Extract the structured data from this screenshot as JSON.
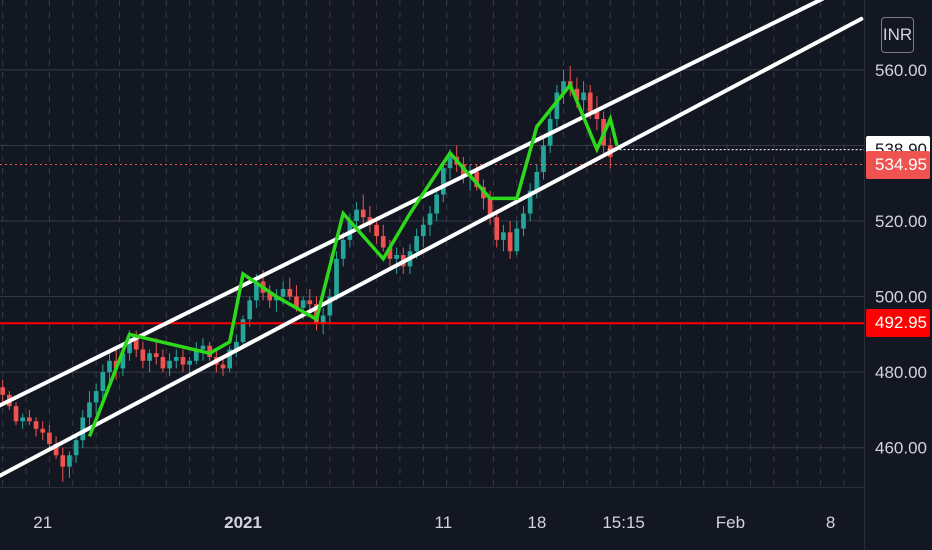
{
  "currency_button": "INR",
  "colors": {
    "background": "#131722",
    "grid": "#363a45",
    "axis_text": "#d1d4dc",
    "channel": "#ffffff",
    "zigzag": "#2ed91c",
    "candle_up": "#26a69a",
    "candle_down": "#ef5350",
    "support": "#ff0000"
  },
  "chart_data": {
    "type": "candlestick",
    "symbol_currency": "INR",
    "y_ticks": [
      460,
      480,
      500,
      520,
      540,
      560
    ],
    "y_tick_labels": [
      "460.00",
      "480.00",
      "500.00",
      "520.00",
      "",
      "560.00"
    ],
    "ylim": [
      449.6,
      578.5
    ],
    "x_tick_labels": [
      "21",
      "2021",
      "11",
      "18",
      "15:15",
      "Feb",
      "8"
    ],
    "x_tick_values": [
      21,
      36,
      51,
      58,
      64.5,
      72.5,
      80
    ],
    "xlim": [
      17.8,
      82.5
    ],
    "candles": [
      [
        18,
        476,
        478,
        472,
        474
      ],
      [
        18.5,
        474,
        475,
        470,
        471
      ],
      [
        19,
        471,
        472,
        466,
        467
      ],
      [
        19.5,
        467,
        469,
        465,
        468
      ],
      [
        20,
        468,
        470,
        466,
        467
      ],
      [
        20.5,
        467,
        468,
        463,
        465
      ],
      [
        21,
        465,
        467,
        462,
        464
      ],
      [
        21.5,
        464,
        466,
        459,
        461
      ],
      [
        22,
        461,
        463,
        457,
        458
      ],
      [
        22.5,
        458,
        460,
        451,
        455
      ],
      [
        23,
        455,
        459,
        452,
        458
      ],
      [
        23.5,
        458,
        463,
        456,
        462
      ],
      [
        24,
        462,
        470,
        460,
        468
      ],
      [
        24.5,
        468,
        475,
        466,
        472
      ],
      [
        25,
        472,
        477,
        469,
        475
      ],
      [
        25.5,
        475,
        482,
        473,
        480
      ],
      [
        26,
        480,
        485,
        477,
        483
      ],
      [
        26.5,
        483,
        486,
        478,
        481
      ],
      [
        27,
        481,
        486,
        479,
        485
      ],
      [
        27.5,
        485,
        491,
        483,
        489
      ],
      [
        28,
        489,
        491,
        484,
        486
      ],
      [
        28.5,
        486,
        488,
        481,
        483
      ],
      [
        29,
        483,
        486,
        480,
        485
      ],
      [
        29.5,
        485,
        489,
        482,
        484
      ],
      [
        30,
        484,
        486,
        480,
        481
      ],
      [
        30.5,
        481,
        485,
        479,
        483
      ],
      [
        31,
        483,
        486,
        481,
        484
      ],
      [
        31.5,
        484,
        486,
        480,
        482
      ],
      [
        32,
        482,
        484,
        479,
        483
      ],
      [
        32.5,
        483,
        488,
        482,
        486
      ],
      [
        33,
        486,
        489,
        483,
        487
      ],
      [
        33.5,
        487,
        488,
        483,
        484
      ],
      [
        34,
        484,
        486,
        480,
        482
      ],
      [
        34.5,
        482,
        484,
        479,
        481
      ],
      [
        35,
        481,
        487,
        480,
        486
      ],
      [
        35.5,
        486,
        490,
        484,
        488
      ],
      [
        36,
        488,
        495,
        487,
        494
      ],
      [
        36.5,
        494,
        500,
        492,
        499
      ],
      [
        37,
        499,
        506,
        497,
        504
      ],
      [
        37.5,
        504,
        507,
        499,
        501
      ],
      [
        38,
        501,
        503,
        497,
        499
      ],
      [
        38.5,
        499,
        502,
        496,
        500
      ],
      [
        39,
        500,
        504,
        498,
        502
      ],
      [
        39.5,
        502,
        505,
        499,
        500
      ],
      [
        40,
        500,
        503,
        496,
        497
      ],
      [
        40.5,
        497,
        500,
        494,
        499
      ],
      [
        41,
        499,
        502,
        496,
        498
      ],
      [
        41.5,
        498,
        500,
        491,
        493
      ],
      [
        42,
        493,
        497,
        490,
        495
      ],
      [
        42.5,
        495,
        502,
        493,
        500
      ],
      [
        43,
        500,
        512,
        499,
        510
      ],
      [
        43.5,
        510,
        517,
        508,
        515
      ],
      [
        44,
        515,
        522,
        513,
        520
      ],
      [
        44.5,
        520,
        525,
        518,
        523
      ],
      [
        45,
        523,
        527,
        519,
        521
      ],
      [
        45.5,
        521,
        524,
        517,
        519
      ],
      [
        46,
        519,
        521,
        514,
        516
      ],
      [
        46.5,
        516,
        519,
        512,
        513
      ],
      [
        47,
        513,
        515,
        508,
        510
      ],
      [
        47.5,
        510,
        513,
        506,
        511
      ],
      [
        48,
        511,
        513,
        506,
        508
      ],
      [
        48.5,
        508,
        514,
        506,
        512
      ],
      [
        49,
        512,
        518,
        510,
        516
      ],
      [
        49.5,
        516,
        521,
        513,
        519
      ],
      [
        50,
        519,
        524,
        516,
        522
      ],
      [
        50.5,
        522,
        529,
        520,
        527
      ],
      [
        51,
        527,
        536,
        525,
        534
      ],
      [
        51.5,
        534,
        539,
        531,
        537
      ],
      [
        52,
        537,
        540,
        533,
        535
      ],
      [
        52.5,
        535,
        537,
        530,
        532
      ],
      [
        53,
        532,
        535,
        528,
        533
      ],
      [
        53.5,
        533,
        535,
        528,
        529
      ],
      [
        54,
        529,
        531,
        523,
        526
      ],
      [
        54.5,
        526,
        528,
        519,
        521
      ],
      [
        55,
        521,
        523,
        513,
        515
      ],
      [
        55.5,
        515,
        519,
        512,
        517
      ],
      [
        56,
        517,
        520,
        510,
        512
      ],
      [
        56.5,
        512,
        520,
        511,
        518
      ],
      [
        57,
        518,
        524,
        516,
        522
      ],
      [
        57.5,
        522,
        530,
        520,
        528
      ],
      [
        58,
        528,
        535,
        526,
        533
      ],
      [
        58.5,
        533,
        542,
        531,
        540
      ],
      [
        59,
        540,
        549,
        538,
        547
      ],
      [
        59.5,
        547,
        556,
        545,
        554
      ],
      [
        60,
        554,
        560,
        551,
        557
      ],
      [
        60.5,
        557,
        561,
        553,
        555
      ],
      [
        61,
        555,
        558,
        550,
        552
      ],
      [
        61.5,
        552,
        557,
        549,
        554
      ],
      [
        62,
        554,
        556,
        547,
        549
      ],
      [
        62.5,
        549,
        553,
        544,
        547
      ],
      [
        63,
        547,
        549,
        538,
        540
      ],
      [
        63.5,
        540,
        542,
        534,
        537
      ]
    ],
    "channel_upper": {
      "from": [
        17.8,
        471.2
      ],
      "to": [
        79.5,
        579.0
      ]
    },
    "channel_lower": {
      "from": [
        17.8,
        452.6
      ],
      "to": [
        82.3,
        573.5
      ]
    },
    "zigzag": [
      [
        24.5,
        463
      ],
      [
        27.5,
        490
      ],
      [
        33.5,
        485
      ],
      [
        35,
        488
      ],
      [
        36,
        506
      ],
      [
        38.5,
        500
      ],
      [
        41.5,
        494
      ],
      [
        43.5,
        522
      ],
      [
        46.5,
        510
      ],
      [
        48.5,
        522
      ],
      [
        51.5,
        538
      ],
      [
        54.5,
        526
      ],
      [
        56.5,
        526
      ],
      [
        58,
        545
      ],
      [
        60.5,
        556
      ],
      [
        62.5,
        539
      ],
      [
        63.5,
        547
      ],
      [
        64,
        540
      ]
    ],
    "support_level": 492.95,
    "price_levels": [
      {
        "label": "538.90",
        "value": 538.9
      },
      {
        "label": "534.95",
        "value": 534.95
      },
      {
        "label": "492.95",
        "value": 492.95
      }
    ]
  }
}
